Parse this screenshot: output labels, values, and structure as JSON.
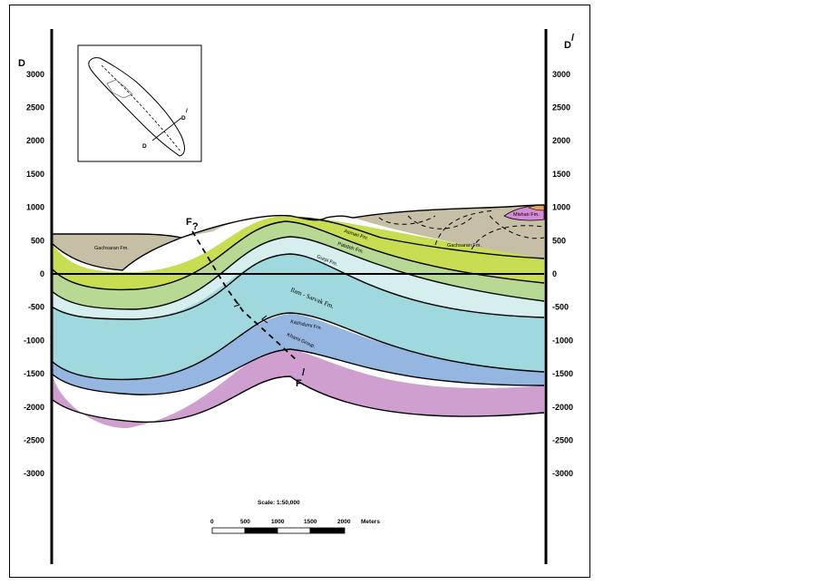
{
  "section_ends": {
    "left": "D",
    "right": "D",
    "right_mark": "/"
  },
  "elevation_ticks": [
    "3000",
    "2500",
    "2000",
    "1500",
    "1000",
    "500",
    "0",
    "-500",
    "-1000",
    "-1500",
    "-2000",
    "-2500",
    "-3000"
  ],
  "formations": {
    "gachsaran_left": "Gachsaran Fm.",
    "gachsaran_right": "Gachsaran Fm.",
    "asmari": "Asmari Fm.",
    "pabdeh": "Pabdeh Fm.",
    "gurpi": "Gurpi Fm.",
    "ilam_sarvak": "Ilam - Sarvak Fm.",
    "kazhdumi": "Kazhdumi Fm.",
    "khami": "Khami Group.",
    "mishan": "Mishan Fm."
  },
  "fault": {
    "top_label": "F",
    "query": "?",
    "bottom_label": "F",
    "bottom_mark": "/"
  },
  "inset": {
    "d_label": "D",
    "d_prime_label": "D",
    "d_prime_mark": "/"
  },
  "scale": {
    "text": "Scale:  1:50,000",
    "ticks": [
      "0",
      "500",
      "1000",
      "1500",
      "2000"
    ],
    "unit": "Meters"
  },
  "colors": {
    "gachsaran": "#c6bfa6",
    "asmari": "#c9dd52",
    "pabdeh": "#b8d993",
    "gurpi": "#d6eeee",
    "ilam_sarvak": "#9fd9de",
    "kazhdumi": "#95b6e0",
    "khami": "#cf9fcf",
    "mishan": "#d48ad6",
    "mishan_top": "#e8a24a"
  }
}
